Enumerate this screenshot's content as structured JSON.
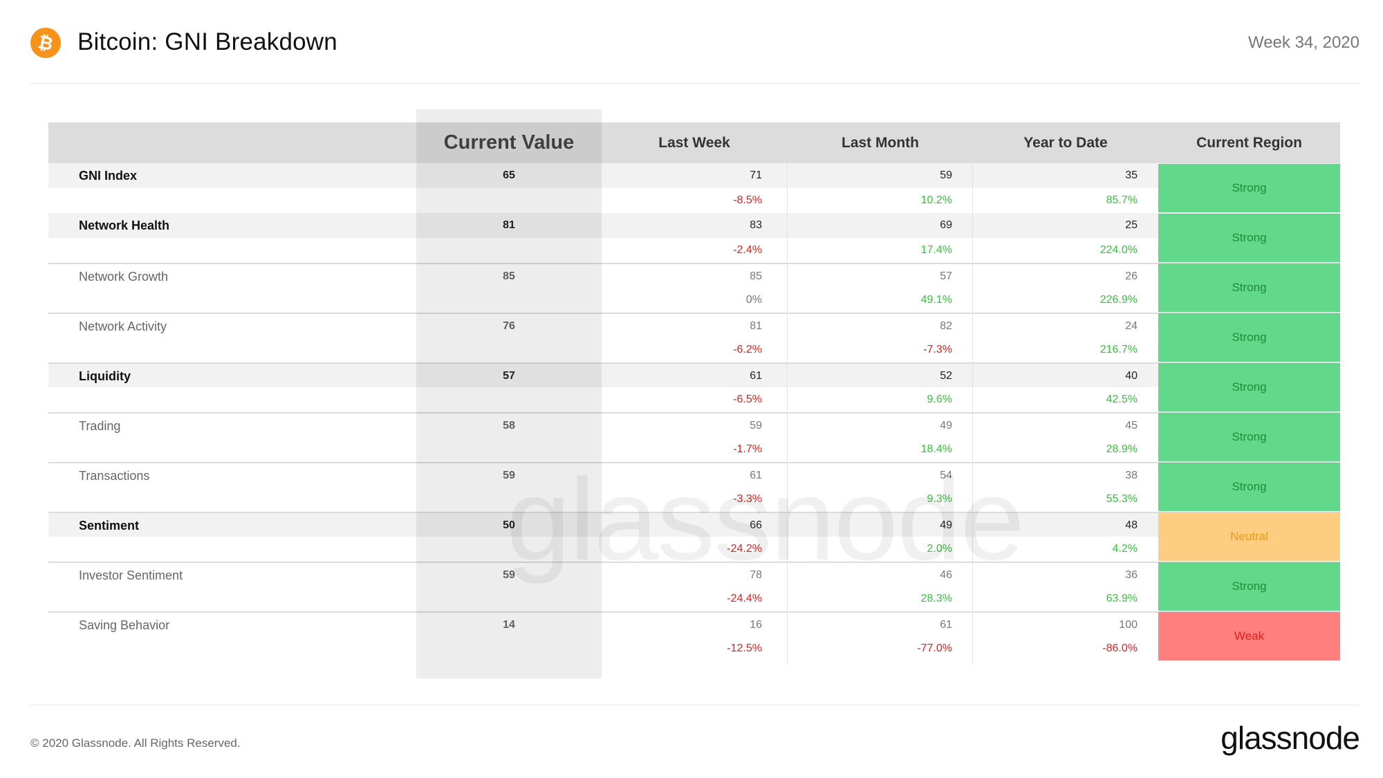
{
  "header": {
    "title": "Bitcoin: GNI Breakdown",
    "week": "Week 34, 2020",
    "logo_icon": "bitcoin-icon",
    "logo_color": "#f7931a"
  },
  "columns": {
    "current_value": "Current Value",
    "last_week": "Last Week",
    "last_month": "Last Month",
    "year_to_date": "Year to Date",
    "current_region": "Current Region"
  },
  "rows": [
    {
      "label": "GNI Index",
      "type": "category",
      "current": "65",
      "lw": "71",
      "lm": "59",
      "ytd": "35",
      "lw_chg": "-8.5%",
      "lm_chg": "10.2%",
      "ytd_chg": "85.7%",
      "region": "Strong"
    },
    {
      "label": "Network Health",
      "type": "category",
      "current": "81",
      "lw": "83",
      "lm": "69",
      "ytd": "25",
      "lw_chg": "-2.4%",
      "lm_chg": "17.4%",
      "ytd_chg": "224.0%",
      "region": "Strong"
    },
    {
      "label": "Network Growth",
      "type": "sub",
      "current": "85",
      "lw": "85",
      "lm": "57",
      "ytd": "26",
      "lw_chg": "0%",
      "lm_chg": "49.1%",
      "ytd_chg": "226.9%",
      "region": "Strong"
    },
    {
      "label": "Network Activity",
      "type": "sub",
      "current": "76",
      "lw": "81",
      "lm": "82",
      "ytd": "24",
      "lw_chg": "-6.2%",
      "lm_chg": "-7.3%",
      "ytd_chg": "216.7%",
      "region": "Strong"
    },
    {
      "label": "Liquidity",
      "type": "category",
      "current": "57",
      "lw": "61",
      "lm": "52",
      "ytd": "40",
      "lw_chg": "-6.5%",
      "lm_chg": "9.6%",
      "ytd_chg": "42.5%",
      "region": "Strong"
    },
    {
      "label": "Trading",
      "type": "sub",
      "current": "58",
      "lw": "59",
      "lm": "49",
      "ytd": "45",
      "lw_chg": "-1.7%",
      "lm_chg": "18.4%",
      "ytd_chg": "28.9%",
      "region": "Strong"
    },
    {
      "label": "Transactions",
      "type": "sub",
      "current": "59",
      "lw": "61",
      "lm": "54",
      "ytd": "38",
      "lw_chg": "-3.3%",
      "lm_chg": "9.3%",
      "ytd_chg": "55.3%",
      "region": "Strong"
    },
    {
      "label": "Sentiment",
      "type": "category",
      "current": "50",
      "lw": "66",
      "lm": "49",
      "ytd": "48",
      "lw_chg": "-24.2%",
      "lm_chg": "2.0%",
      "ytd_chg": "4.2%",
      "region": "Neutral"
    },
    {
      "label": "Investor Sentiment",
      "type": "sub",
      "current": "59",
      "lw": "78",
      "lm": "46",
      "ytd": "36",
      "lw_chg": "-24.4%",
      "lm_chg": "28.3%",
      "ytd_chg": "63.9%",
      "region": "Strong"
    },
    {
      "label": "Saving Behavior",
      "type": "sub",
      "current": "14",
      "lw": "16",
      "lm": "61",
      "ytd": "100",
      "lw_chg": "-12.5%",
      "lm_chg": "-77.0%",
      "ytd_chg": "-86.0%",
      "region": "Weak"
    }
  ],
  "colors": {
    "strong": "#62d98a",
    "neutral": "#fdcd82",
    "weak": "#ff7f7f",
    "negative": "#e0211b",
    "positive": "#33c43a"
  },
  "watermark": "glassnode",
  "footer": {
    "copyright": "© 2020 Glassnode. All Rights Reserved.",
    "brand": "glassnode"
  }
}
